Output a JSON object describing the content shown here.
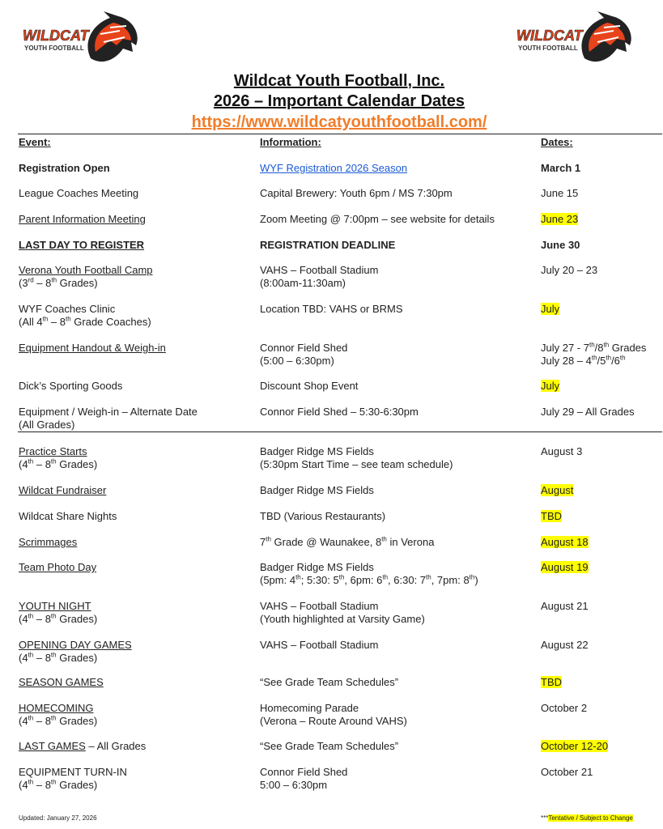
{
  "header": {
    "logo_text": "WILDCAT YOUTH FOOTBALL",
    "title": "Wildcat Youth Football, Inc.",
    "subtitle": "2026 – Important Calendar Dates",
    "website": "https://www.wildcatyouthfootball.com/",
    "accent_color": "#f07d2a"
  },
  "columns": {
    "event": "Event:",
    "information": "Information:",
    "dates": "Dates:"
  },
  "rows": [
    {
      "event": [
        [
          "Registration Open"
        ]
      ],
      "event_bold": true,
      "info": [
        [
          "WYF Registration 2026 Season"
        ]
      ],
      "info_link": true,
      "date": [
        [
          "March 1"
        ]
      ],
      "date_bold": true
    },
    {
      "event": [
        [
          "League Coaches Meeting"
        ]
      ],
      "info": [
        [
          "Capital Brewery: Youth 6pm / MS 7:30pm"
        ]
      ],
      "date": [
        [
          "June 15"
        ]
      ]
    },
    {
      "event": [
        [
          {
            "u": "Parent Information Meeting"
          }
        ]
      ],
      "info": [
        [
          "Zoom Meeting @ 7:00pm – see website for details"
        ]
      ],
      "date": [
        [
          "June 23"
        ]
      ],
      "highlight": true
    },
    {
      "event": [
        [
          {
            "u": "LAST DAY TO REGISTER"
          }
        ]
      ],
      "event_bold": true,
      "info": [
        [
          "REGISTRATION DEADLINE"
        ]
      ],
      "info_bold": true,
      "date": [
        [
          "June 30"
        ]
      ],
      "date_bold": true
    },
    {
      "event": [
        [
          {
            "u": "Verona Youth Football Camp"
          }
        ],
        [
          "(3",
          {
            "sup": "rd"
          },
          " – 8",
          {
            "sup": "th"
          },
          " Grades)"
        ]
      ],
      "info": [
        [
          "VAHS – Football Stadium"
        ],
        [
          "(8:00am-11:30am)"
        ]
      ],
      "date": [
        [
          "July 20 – 23"
        ]
      ]
    },
    {
      "event": [
        [
          "WYF Coaches Clinic"
        ],
        [
          "(All 4",
          {
            "sup": "th"
          },
          " – 8",
          {
            "sup": "th"
          },
          " Grade Coaches)"
        ]
      ],
      "info": [
        [
          "Location TBD: VAHS or BRMS"
        ]
      ],
      "date": [
        [
          "July"
        ]
      ],
      "highlight": true
    },
    {
      "event": [
        [
          {
            "u": "Equipment Handout & Weigh-in"
          }
        ]
      ],
      "info": [
        [
          "Connor Field Shed"
        ],
        [
          "(5:00 – 6:30pm)"
        ]
      ],
      "date": [
        [
          "July 27  - 7",
          {
            "sup": "th"
          },
          "/8",
          {
            "sup": "th"
          },
          " Grades"
        ],
        [
          "July 28 – 4",
          {
            "sup": "th"
          },
          "/5",
          {
            "sup": "th"
          },
          "/6",
          {
            "sup": "th"
          }
        ]
      ]
    },
    {
      "event": [
        [
          "Dick’s Sporting Goods"
        ]
      ],
      "info": [
        [
          "Discount Shop Event"
        ]
      ],
      "date": [
        [
          "July"
        ]
      ],
      "highlight": true
    },
    {
      "event": [
        [
          "Equipment / Weigh-in – Alternate Date"
        ],
        [
          "(All Grades)"
        ]
      ],
      "info": [
        [
          "Connor Field Shed – 5:30-6:30pm"
        ]
      ],
      "date": [
        [
          "July 29 – All Grades"
        ]
      ]
    },
    {
      "event": [
        [
          {
            "u": "Practice Starts"
          }
        ],
        [
          "(4",
          {
            "sup": "th"
          },
          " – 8",
          {
            "sup": "th"
          },
          " Grades)"
        ]
      ],
      "info": [
        [
          "Badger Ridge MS Fields"
        ],
        [
          "(5:30pm Start Time – see team schedule)"
        ]
      ],
      "date": [
        [
          "August 3"
        ]
      ]
    },
    {
      "event": [
        [
          {
            "u": "Wildcat Fundraiser"
          }
        ]
      ],
      "info": [
        [
          "Badger Ridge MS Fields"
        ]
      ],
      "date": [
        [
          "August"
        ]
      ],
      "highlight": true
    },
    {
      "event": [
        [
          "Wildcat Share Nights"
        ]
      ],
      "info": [
        [
          "TBD (Various Restaurants)"
        ]
      ],
      "date": [
        [
          "TBD"
        ]
      ],
      "highlight": true
    },
    {
      "event": [
        [
          {
            "u": "Scrimmages"
          }
        ]
      ],
      "info": [
        [
          "7",
          {
            "sup": "th"
          },
          " Grade @ Waunakee, 8",
          {
            "sup": "th"
          },
          " in Verona"
        ]
      ],
      "date": [
        [
          "August 18"
        ]
      ],
      "highlight": true
    },
    {
      "event": [
        [
          {
            "u": "Team Photo Day"
          }
        ]
      ],
      "info": [
        [
          "Badger Ridge MS Fields"
        ],
        [
          "(5pm: 4",
          {
            "sup": "th"
          },
          "; 5:30: 5",
          {
            "sup": "th"
          },
          ", 6pm: 6",
          {
            "sup": "th"
          },
          ", 6:30: 7",
          {
            "sup": "th"
          },
          ", 7pm: 8",
          {
            "sup": "th"
          },
          ")"
        ]
      ],
      "date": [
        [
          "August 19"
        ]
      ],
      "highlight": true
    },
    {
      "event": [
        [
          {
            "u": "YOUTH NIGHT"
          }
        ],
        [
          "(4",
          {
            "sup": "th"
          },
          " – 8",
          {
            "sup": "th"
          },
          " Grades)"
        ]
      ],
      "info": [
        [
          "VAHS – Football Stadium"
        ],
        [
          "(Youth highlighted at Varsity Game)"
        ]
      ],
      "date": [
        [
          "August 21"
        ]
      ]
    },
    {
      "event": [
        [
          {
            "u": "OPENING DAY GAMES"
          }
        ],
        [
          "(4",
          {
            "sup": "th"
          },
          " – 8",
          {
            "sup": "th"
          },
          " Grades)"
        ]
      ],
      "info": [
        [
          "VAHS – Football Stadium"
        ]
      ],
      "date": [
        [
          "August 22"
        ]
      ]
    },
    {
      "event": [
        [
          {
            "u": "SEASON GAMES"
          }
        ]
      ],
      "info": [
        [
          "“See Grade Team Schedules”"
        ]
      ],
      "date": [
        [
          "TBD"
        ]
      ],
      "highlight": true
    },
    {
      "event": [
        [
          {
            "u": "HOMECOMING"
          }
        ],
        [
          "(4",
          {
            "sup": "th"
          },
          " – 8",
          {
            "sup": "th"
          },
          " Grades)"
        ]
      ],
      "info": [
        [
          "Homecoming Parade"
        ],
        [
          "(Verona – Route Around VAHS)"
        ]
      ],
      "date": [
        [
          "October 2"
        ]
      ]
    },
    {
      "event": [
        [
          {
            "u": "LAST GAMES"
          },
          " – All Grades"
        ]
      ],
      "info": [
        [
          "“See Grade Team Schedules”"
        ]
      ],
      "date": [
        [
          "October 12-20"
        ]
      ],
      "highlight": true
    },
    {
      "event": [
        [
          "EQUIPMENT TURN-IN"
        ],
        [
          "(4",
          {
            "sup": "th"
          },
          " – 8",
          {
            "sup": "th"
          },
          " Grades)"
        ]
      ],
      "info": [
        [
          "Connor Field Shed"
        ],
        [
          "5:00 – 6:30pm"
        ]
      ],
      "date": [
        [
          "October 21"
        ]
      ]
    }
  ],
  "footer": {
    "updated": "Updated: January 27,  2026",
    "note_prefix": "***",
    "note": "Tentative / Subject to Change"
  }
}
